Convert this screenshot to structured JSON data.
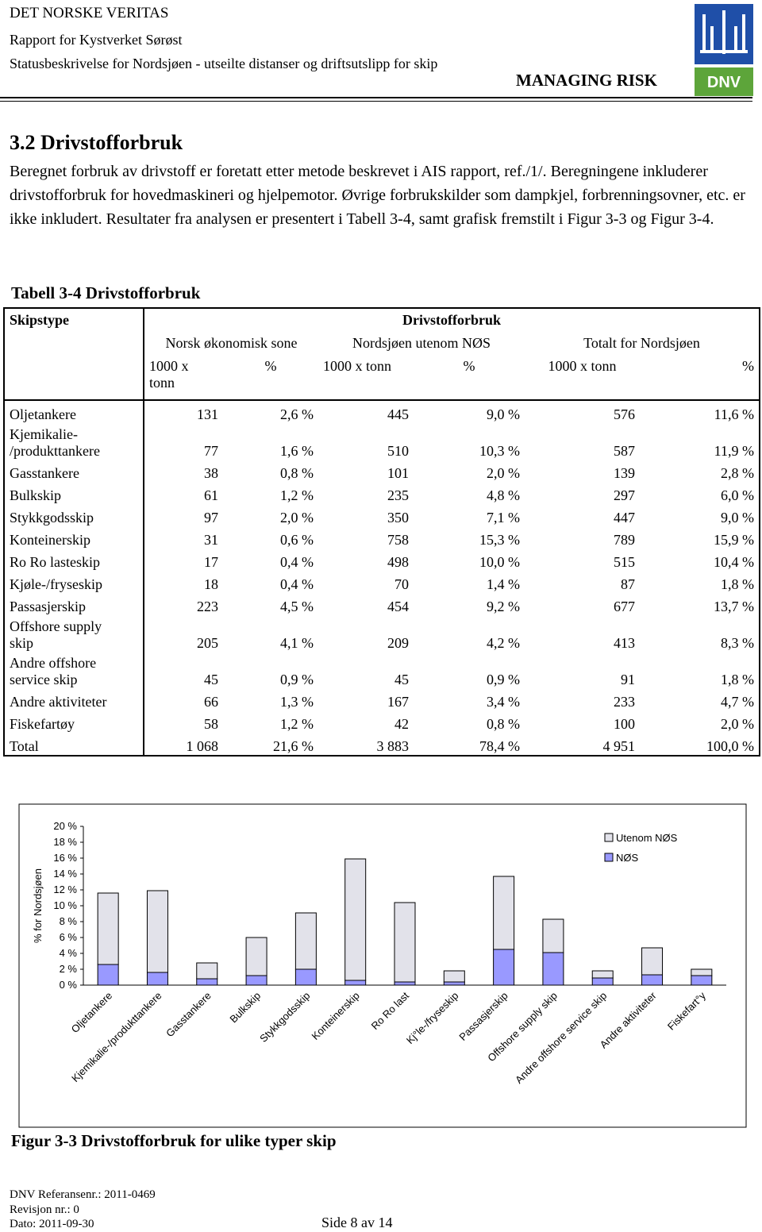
{
  "header": {
    "company": "DET NORSKE VERITAS",
    "report": "Rapport for Kystverket Sørøst",
    "subtitle": "Statusbeskrivelse for Nordsjøen - utseilte distanser og driftsutslipp for skip",
    "tagline": "MANAGING RISK",
    "logo_text": "DNV"
  },
  "section": {
    "title": "3.2 Drivstofforbruk",
    "paragraph": "Beregnet forbruk av drivstoff er foretatt etter metode beskrevet i AIS rapport, ref./1/. Beregningene inkluderer drivstofforbruk for hovedmaskineri og hjelpemotor. Øvrige forbrukskilder som dampkjel, forbrenningsovner, etc. er ikke inkludert. Resultater fra analysen er presentert i Tabell 3-4, samt grafisk fremstilt i Figur 3-3 og Figur 3-4."
  },
  "table": {
    "caption": "Tabell 3-4 Drivstofforbruk",
    "header": {
      "skipstype": "Skipstype",
      "group": "Drivstofforbruk",
      "subgroups": [
        "Norsk økonomisk sone",
        "Nordsjøen utenom NØS",
        "Totalt for Nordsjøen"
      ],
      "units": [
        "1000 x\ntonn",
        "%",
        "1000 x tonn",
        "%",
        "1000 x tonn",
        "%"
      ]
    },
    "rows": [
      [
        "Oljetankere",
        "131",
        "2,6 %",
        "445",
        "9,0 %",
        "576",
        "11,6 %"
      ],
      [
        "Kjemikalie-\n/produkttankere",
        "77",
        "1,6 %",
        "510",
        "10,3 %",
        "587",
        "11,9 %"
      ],
      [
        "Gasstankere",
        "38",
        "0,8 %",
        "101",
        "2,0 %",
        "139",
        "2,8 %"
      ],
      [
        "Bulkskip",
        "61",
        "1,2 %",
        "235",
        "4,8 %",
        "297",
        "6,0 %"
      ],
      [
        "Stykkgodsskip",
        "97",
        "2,0 %",
        "350",
        "7,1 %",
        "447",
        "9,0 %"
      ],
      [
        "Konteinerskip",
        "31",
        "0,6 %",
        "758",
        "15,3 %",
        "789",
        "15,9 %"
      ],
      [
        "Ro Ro lasteskip",
        "17",
        "0,4 %",
        "498",
        "10,0 %",
        "515",
        "10,4 %"
      ],
      [
        "Kjøle-/fryseskip",
        "18",
        "0,4 %",
        "70",
        "1,4 %",
        "87",
        "1,8 %"
      ],
      [
        "Passasjerskip",
        "223",
        "4,5 %",
        "454",
        "9,2 %",
        "677",
        "13,7 %"
      ],
      [
        "Offshore supply\nskip",
        "205",
        "4,1 %",
        "209",
        "4,2 %",
        "413",
        "8,3 %"
      ],
      [
        "Andre offshore\nservice skip",
        "45",
        "0,9 %",
        "45",
        "0,9 %",
        "91",
        "1,8 %"
      ],
      [
        "Andre aktiviteter",
        "66",
        "1,3 %",
        "167",
        "3,4 %",
        "233",
        "4,7 %"
      ],
      [
        "Fiskefartøy",
        "58",
        "1,2 %",
        "42",
        "0,8 %",
        "100",
        "2,0 %"
      ],
      [
        "Total",
        "1 068",
        "21,6 %",
        "3 883",
        "78,4 %",
        "4 951",
        "100,0 %"
      ]
    ]
  },
  "chart_data": {
    "type": "bar",
    "stacked": true,
    "ylabel": "% for Nordsjøen",
    "categories": [
      "Oljetankere",
      "Kjemikalie-/produkttankere",
      "Gasstankere",
      "Bulkskip",
      "Stykkgodsskip",
      "Konteinerskip",
      "Ro Ro last",
      "Kj°le-/fryseskip",
      "Passasjerskip",
      "Offshore supply skip",
      "Andre offshore service skip",
      "Andre aktiviteter",
      "Fiskefart°y"
    ],
    "series": [
      {
        "name": "NØS",
        "color": "#9999ff",
        "values": [
          2.6,
          1.6,
          0.8,
          1.2,
          2.0,
          0.6,
          0.4,
          0.4,
          4.5,
          4.1,
          0.9,
          1.3,
          1.2
        ]
      },
      {
        "name": "Utenom NØS",
        "color": "#e2e2ea",
        "values": [
          9.0,
          10.3,
          2.0,
          4.8,
          7.1,
          15.3,
          10.0,
          1.4,
          9.2,
          4.2,
          0.9,
          3.4,
          0.8
        ]
      }
    ],
    "ylim": [
      0,
      20
    ],
    "yticks": [
      {
        "value": 0,
        "label": "0 %"
      },
      {
        "value": 2,
        "label": "2 %"
      },
      {
        "value": 4,
        "label": "4 %"
      },
      {
        "value": 6,
        "label": "6 %"
      },
      {
        "value": 8,
        "label": "8 %"
      },
      {
        "value": 10,
        "label": "10 %"
      },
      {
        "value": 12,
        "label": "12 %"
      },
      {
        "value": 14,
        "label": "14 %"
      },
      {
        "value": 16,
        "label": "16 %"
      },
      {
        "value": 18,
        "label": "18 %"
      },
      {
        "value": 20,
        "label": "20 %"
      }
    ],
    "legend": "upper right"
  },
  "figure": {
    "caption": "Figur 3-3 Drivstofforbruk for ulike typer skip"
  },
  "footer": {
    "reference": "DNV Referansenr.: 2011-0469",
    "revision": "Revisjon nr.: 0",
    "date": "Dato: 2011-09-30",
    "page": "Side 8 av 14"
  }
}
